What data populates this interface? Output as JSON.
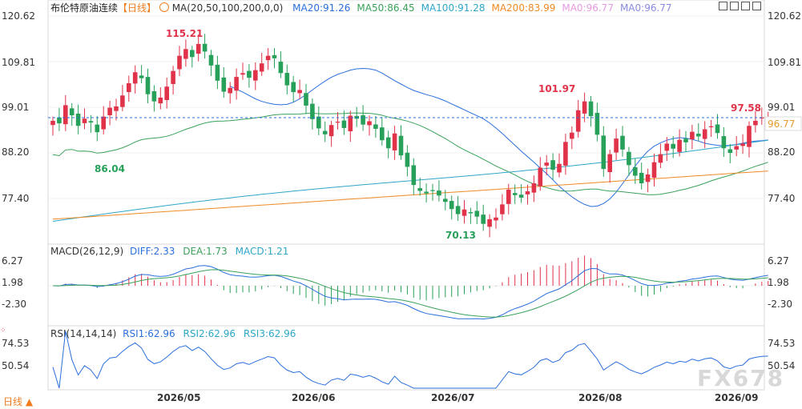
{
  "header": {
    "title": "布伦特原油连续",
    "period_tag": "【日线】",
    "ma_label": "MA(20,50,100,200,0,0)",
    "ma_values": [
      {
        "text": "MA20:91.26",
        "color": "#2a6fdb"
      },
      {
        "text": "MA50:86.45",
        "color": "#3aa15a"
      },
      {
        "text": "MA100:91.28",
        "color": "#2fa6c8"
      },
      {
        "text": "MA200:83.99",
        "color": "#f08a24"
      },
      {
        "text": "MA0:96.77",
        "color": "#e59ae0"
      },
      {
        "text": "MA0:96.77",
        "color": "#8a8ae0"
      }
    ]
  },
  "toolbar": {
    "icons": [
      "grid-icon",
      "minus-icon",
      "plus-icon",
      "close-icon"
    ]
  },
  "colors": {
    "up": "#e0334a",
    "down": "#27a05a",
    "ma20": "#2a6fdb",
    "ma50": "#3aa15a",
    "ma100": "#2fa6c8",
    "ma200": "#f08a24",
    "price_line": "#2a6fdb"
  },
  "price_axis": {
    "ticks": [
      "120.62",
      "109.81",
      "99.01",
      "88.20",
      "77.40"
    ],
    "last_price": "96.77"
  },
  "annotations": {
    "high": "115.21",
    "low_early": "86.04",
    "low": "70.13",
    "peak2": "101.97",
    "latest_high": "97.58"
  },
  "macd": {
    "label": "MACD(26,12,9)",
    "diff": "DIFF:2.33",
    "dea": "DEA:1.73",
    "macd": "MACD:1.21",
    "ticks": [
      "6.27",
      "1.98",
      "-2.30"
    ]
  },
  "rsi": {
    "label": "RSI(14,14,14)",
    "rsi1": "RSI1:62.96",
    "rsi2": "RSI2:62.96",
    "rsi3": "RSI3:62.96",
    "ticks": [
      "74.53",
      "50.54"
    ]
  },
  "x_axis": {
    "ticks": [
      "2026/05",
      "2026/06",
      "2026/07",
      "2026/08",
      "2026/09"
    ]
  },
  "period_button": "日线",
  "watermark": "FX678",
  "chart_data": {
    "type": "candlestick",
    "title": "布伦特原油连续",
    "y_range": [
      70,
      121
    ],
    "candles_close": [
      95.8,
      95.2,
      99.5,
      97.1,
      94.6,
      96.3,
      95.4,
      93.1,
      96.8,
      98.9,
      99.2,
      101.8,
      104.7,
      107.3,
      105.9,
      102.1,
      100.4,
      101.3,
      103.9,
      107.6,
      111.2,
      112.8,
      110.9,
      114.0,
      112.2,
      108.9,
      105.3,
      102.7,
      103.6,
      106.2,
      107.1,
      106.0,
      107.8,
      109.4,
      111.2,
      110.6,
      107.1,
      104.2,
      102.6,
      103.1,
      99.4,
      96.2,
      94.0,
      92.6,
      94.8,
      95.6,
      94.1,
      97.0,
      96.3,
      94.9,
      95.7,
      93.9,
      91.2,
      89.3,
      92.8,
      87.6,
      84.9,
      80.6,
      79.2,
      78.6,
      79.3,
      78.1,
      76.6,
      74.9,
      73.7,
      74.8,
      73.9,
      73.1,
      71.4,
      72.5,
      72.9,
      76.0,
      79.5,
      78.2,
      77.6,
      79.1,
      81.0,
      84.7,
      85.9,
      84.2,
      85.6,
      90.8,
      93.0,
      98.3,
      100.4,
      96.9,
      92.5,
      84.4,
      87.9,
      91.6,
      89.0,
      85.3,
      82.8,
      81.0,
      83.1,
      86.0,
      87.9,
      90.4,
      89.2,
      91.3,
      90.7,
      93.2,
      92.1,
      93.8,
      94.5,
      92.9,
      89.3,
      88.2,
      89.8,
      90.4,
      94.6,
      95.8,
      96.6,
      96.77
    ],
    "ma20": [
      104.0,
      103.3,
      102.6,
      101.8,
      101.0,
      100.4,
      100.0,
      99.7,
      99.6,
      99.7,
      100.2,
      101.0,
      102.0,
      103.1,
      104.2,
      105.2,
      106.1,
      106.8,
      107.3,
      107.8,
      108.1,
      108.2,
      108.1,
      107.8,
      107.1,
      106.2,
      105.3,
      104.5,
      103.7,
      103.0,
      102.5,
      102.0,
      101.6,
      101.1,
      100.5,
      99.8,
      99.1,
      98.4,
      97.7,
      97.0,
      96.3,
      95.3,
      94.1,
      92.8,
      91.4,
      90.0,
      88.6,
      87.3,
      86.0,
      84.6,
      83.3,
      81.8,
      80.3,
      79.0,
      77.8,
      76.8,
      76.0,
      75.5,
      75.6,
      76.2,
      77.3,
      78.9,
      80.9,
      83.0,
      85.1,
      87.0,
      88.6,
      89.8,
      90.6,
      91.2,
      91.6,
      91.8,
      91.7,
      91.4,
      91.0,
      90.5,
      90.2,
      90.0,
      89.9,
      90.0,
      90.2,
      90.5,
      90.8,
      91.0,
      91.1,
      91.26
    ]
  }
}
